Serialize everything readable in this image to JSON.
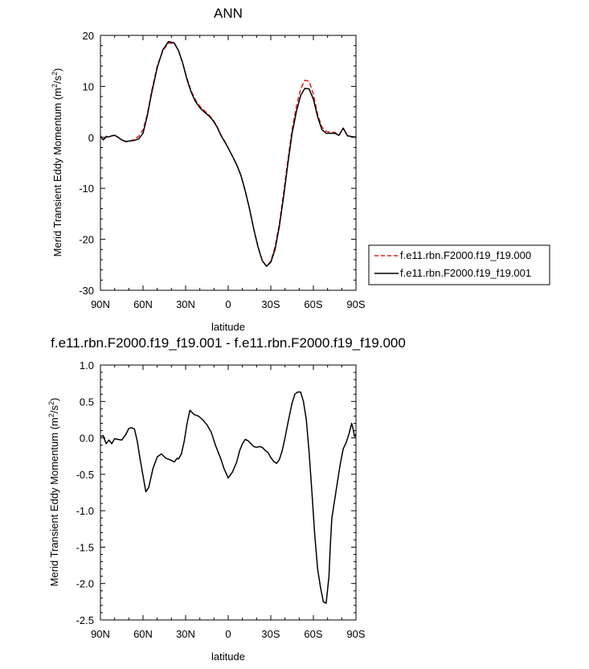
{
  "chart_data": [
    {
      "type": "line",
      "title": "ANN",
      "xlabel": "latitude",
      "ylabel": "Merid Transient Eddy Momentum (m²/s²)",
      "ylabel_main": "Merid Transient Eddy Momentum (m",
      "ylabel_sup1": "2",
      "ylabel_mid": "/s",
      "ylabel_sup2": "2",
      "ylabel_end": ")",
      "xlim": [
        -90,
        90
      ],
      "ylim": [
        -30,
        20
      ],
      "x_tick_values": [
        -90,
        -60,
        -30,
        0,
        30,
        60,
        90
      ],
      "x_tick_labels": [
        "90N",
        "60N",
        "30N",
        "0",
        "30S",
        "60S",
        "90S"
      ],
      "y_tick_values": [
        -30,
        -20,
        -10,
        0,
        10,
        20
      ],
      "y_tick_labels": [
        "-30",
        "-20",
        "-10",
        "0",
        "10",
        "20"
      ],
      "legend_position": "right",
      "series": [
        {
          "name": "f.e11.rbn.F2000.f19_f19.000",
          "color": "#e0201b",
          "dash": "dashed",
          "x": [
            -90,
            -88,
            -86,
            -84,
            -82,
            -80,
            -78,
            -75,
            -72,
            -69,
            -66,
            -63,
            -60,
            -57,
            -54,
            -50,
            -46,
            -42,
            -38,
            -35,
            -32,
            -29,
            -26,
            -23,
            -20,
            -17,
            -14,
            -11,
            -8,
            -5,
            -2,
            0,
            3,
            6,
            9,
            12,
            15,
            18,
            21,
            24,
            27,
            30,
            33,
            36,
            39,
            42,
            45,
            48,
            51,
            54,
            57,
            60,
            63,
            66,
            69,
            72,
            75,
            78,
            81,
            84,
            86,
            88,
            90
          ],
          "y": [
            0.3,
            -0.6,
            0.2,
            0.1,
            0.3,
            0.4,
            0.1,
            -0.5,
            -0.9,
            -0.7,
            -0.4,
            0.2,
            1.5,
            4.5,
            9,
            14,
            17,
            18.5,
            18.4,
            17,
            14.5,
            11.5,
            9,
            7.3,
            6.1,
            5.3,
            4.5,
            3.6,
            2.2,
            0.4,
            -1,
            -2.1,
            -3.7,
            -5.4,
            -7.5,
            -10.5,
            -14,
            -18,
            -21.5,
            -24.2,
            -25.3,
            -24.3,
            -21.5,
            -17,
            -11,
            -4.5,
            1.5,
            6,
            9.5,
            11.2,
            11,
            8.5,
            4.5,
            2,
            1.2,
            1,
            1,
            0.4,
            1.8,
            0.3,
            0.2,
            0.1,
            0.1
          ]
        },
        {
          "name": "f.e11.rbn.F2000.f19_f19.001",
          "color": "#000000",
          "dash": "solid",
          "x": [
            -90,
            -88,
            -86,
            -84,
            -82,
            -80,
            -78,
            -75,
            -72,
            -69,
            -66,
            -63,
            -60,
            -57,
            -54,
            -50,
            -46,
            -42,
            -38,
            -35,
            -32,
            -29,
            -26,
            -23,
            -20,
            -17,
            -14,
            -11,
            -8,
            -5,
            -2,
            0,
            3,
            6,
            9,
            12,
            15,
            18,
            21,
            24,
            27,
            30,
            33,
            36,
            39,
            42,
            45,
            48,
            51,
            54,
            57,
            60,
            63,
            66,
            69,
            72,
            75,
            78,
            81,
            84,
            86,
            88,
            90
          ],
          "y": [
            0.3,
            -0.5,
            0.1,
            0.1,
            0.3,
            0.4,
            0.1,
            -0.5,
            -0.8,
            -0.7,
            -0.6,
            -0.3,
            0.8,
            4.2,
            8.6,
            13.7,
            17.2,
            18.8,
            18.5,
            17,
            14.5,
            11.3,
            8.8,
            7,
            5.8,
            5,
            4.3,
            3.4,
            2.1,
            0.3,
            -1.1,
            -2.1,
            -3.7,
            -5.4,
            -7.5,
            -10.5,
            -14,
            -18,
            -21.5,
            -24.2,
            -25.3,
            -24.5,
            -22,
            -17.5,
            -11.7,
            -5.2,
            0.8,
            5,
            8.2,
            9.6,
            9.5,
            7.5,
            4,
            1.5,
            0.8,
            0.8,
            0.8,
            0.4,
            1.8,
            0.3,
            0.2,
            0.1,
            0.1
          ]
        }
      ]
    },
    {
      "type": "line",
      "title": "f.e11.rbn.F2000.f19_f19.001 - f.e11.rbn.F2000.f19_f19.000",
      "xlabel": "latitude",
      "ylabel": "Merid Transient Eddy Momentum (m²/s²)",
      "ylabel_main": "Merid Transient Eddy Momentum (m",
      "ylabel_sup1": "2",
      "ylabel_mid": "/s",
      "ylabel_sup2": "2",
      "ylabel_end": ")",
      "xlim": [
        -90,
        90
      ],
      "ylim": [
        -2.5,
        1.0
      ],
      "x_tick_values": [
        -90,
        -60,
        -30,
        0,
        30,
        60,
        90
      ],
      "x_tick_labels": [
        "90N",
        "60N",
        "30N",
        "0",
        "30S",
        "60S",
        "90S"
      ],
      "y_tick_values": [
        -2.5,
        -2.0,
        -1.5,
        -1.0,
        -0.5,
        0.0,
        0.5,
        1.0
      ],
      "y_tick_labels": [
        "-2.5",
        "-2.0",
        "-1.5",
        "-1.0",
        "-0.5",
        "0.0",
        "0.5",
        "1.0"
      ],
      "series": [
        {
          "color": "#000000",
          "dash": "solid",
          "x": [
            -90,
            -88,
            -86,
            -84,
            -82,
            -80,
            -78,
            -75,
            -72,
            -70,
            -68,
            -66,
            -64,
            -62,
            -60,
            -58,
            -56,
            -53,
            -50,
            -47,
            -44,
            -41,
            -38,
            -36,
            -35,
            -33,
            -31,
            -29,
            -27,
            -24,
            -21,
            -18,
            -15,
            -12,
            -9,
            -7,
            -5,
            -3,
            0,
            3,
            6,
            8,
            10,
            12,
            14,
            16,
            18,
            20,
            22,
            24,
            26,
            28,
            30,
            32,
            34,
            36,
            38,
            40,
            42,
            45,
            47,
            49,
            51,
            53,
            55,
            57,
            59,
            61,
            63,
            65,
            67,
            69,
            71,
            72,
            73,
            75,
            77,
            79,
            81,
            83,
            85,
            87,
            88,
            89,
            90
          ],
          "y": [
            0.02,
            0.03,
            -0.08,
            -0.03,
            -0.08,
            -0.01,
            -0.02,
            -0.03,
            0.05,
            0.13,
            0.14,
            0.12,
            -0.05,
            -0.3,
            -0.52,
            -0.74,
            -0.68,
            -0.42,
            -0.26,
            -0.22,
            -0.28,
            -0.3,
            -0.33,
            -0.28,
            -0.29,
            -0.22,
            -0.05,
            0.2,
            0.38,
            0.32,
            0.3,
            0.25,
            0.18,
            0.08,
            -0.1,
            -0.2,
            -0.3,
            -0.42,
            -0.55,
            -0.47,
            -0.33,
            -0.18,
            -0.08,
            -0.02,
            -0.04,
            -0.08,
            -0.12,
            -0.13,
            -0.12,
            -0.13,
            -0.17,
            -0.2,
            -0.27,
            -0.32,
            -0.35,
            -0.3,
            -0.18,
            0.0,
            0.2,
            0.48,
            0.6,
            0.63,
            0.63,
            0.5,
            0.25,
            -0.2,
            -0.75,
            -1.35,
            -1.8,
            -2.05,
            -2.25,
            -2.27,
            -1.9,
            -1.45,
            -1.1,
            -0.85,
            -0.6,
            -0.35,
            -0.15,
            -0.07,
            0.05,
            0.2,
            0.12,
            0.02,
            0.05
          ]
        }
      ]
    }
  ]
}
